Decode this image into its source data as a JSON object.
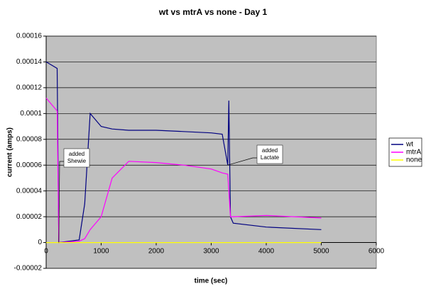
{
  "chart_data": {
    "type": "line",
    "title": "wt vs mtrA vs none - Day 1",
    "x_label": "time (sec)",
    "y_label": "current (amps)",
    "x": [
      0,
      200,
      230,
      600,
      700,
      800,
      1000,
      1200,
      1500,
      2000,
      2500,
      3000,
      3200,
      3300,
      3320,
      3350,
      3400,
      4000,
      5000
    ],
    "series": [
      {
        "name": "wt",
        "color": "#000080",
        "values": [
          0.00014,
          0.000135,
          0,
          2e-06,
          3e-05,
          0.0001,
          9e-05,
          8.8e-05,
          8.7e-05,
          8.7e-05,
          8.6e-05,
          8.5e-05,
          8.4e-05,
          6e-05,
          0.00011,
          2e-05,
          1.5e-05,
          1.2e-05,
          1e-05
        ]
      },
      {
        "name": "mtrA",
        "color": "#ff00ff",
        "values": [
          0.000112,
          0.000102,
          0,
          1e-06,
          3e-06,
          1e-05,
          2e-05,
          5e-05,
          6.3e-05,
          6.2e-05,
          6e-05,
          5.7e-05,
          5.4e-05,
          5.3e-05,
          4e-05,
          2e-05,
          2e-05,
          2.1e-05,
          1.9e-05
        ]
      },
      {
        "name": "none",
        "color": "#ffff00",
        "values": [
          0,
          0,
          0,
          0,
          0,
          0,
          0,
          0,
          0,
          0,
          0,
          0,
          0,
          0,
          0,
          0,
          0,
          0,
          0
        ]
      }
    ],
    "xlim": [
      0,
      6000
    ],
    "xticks": [
      0,
      1000,
      2000,
      3000,
      4000,
      5000,
      6000
    ],
    "ylim": [
      -2e-05,
      0.00016
    ],
    "yticks": [
      -2e-05,
      0,
      2e-05,
      4e-05,
      6e-05,
      8e-05,
      0.0001,
      0.00012,
      0.00014,
      0.00016
    ],
    "grid": true,
    "legend": "right",
    "annotations": [
      {
        "text": "added Shewie",
        "x": 230,
        "y": 0
      },
      {
        "text": "added Lactate",
        "x": 3300,
        "y": 6e-05
      }
    ]
  }
}
